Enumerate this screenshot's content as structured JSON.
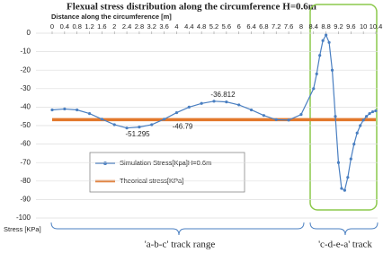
{
  "chart_data": {
    "type": "line",
    "title": "Flexual stress distribution along the circumference H=0.6m",
    "x_label": "Distance along the circumference [m]",
    "y_label": "Stress [KPa]",
    "xlim": [
      0,
      10.4
    ],
    "xticks": [
      0,
      0.4,
      0.8,
      1.2,
      1.6,
      2,
      2.4,
      2.8,
      3.2,
      3.6,
      4,
      4.4,
      4.8,
      5.2,
      5.6,
      6,
      6.4,
      6.8,
      7.2,
      7.6,
      8,
      8.4,
      8.8,
      9.2,
      9.6,
      10,
      10.4
    ],
    "ylim": [
      -100,
      0
    ],
    "yticks": [
      0,
      -10,
      -20,
      -30,
      -40,
      -50,
      -60,
      -70,
      -80,
      -90,
      -100
    ],
    "grid": true,
    "series": [
      {
        "name": "Simulation Stress[Kpa]H=0.6m",
        "color": "#4a7fc1",
        "x": [
          0,
          0.4,
          0.8,
          1.2,
          1.6,
          2,
          2.4,
          2.8,
          3.2,
          3.6,
          4,
          4.4,
          4.8,
          5.2,
          5.6,
          6,
          6.4,
          6.8,
          7.2,
          7.6,
          8,
          8.4,
          8.5,
          8.6,
          8.7,
          8.8,
          8.9,
          9,
          9.1,
          9.2,
          9.3,
          9.4,
          9.5,
          9.6,
          9.7,
          9.8,
          9.9,
          10,
          10.1,
          10.2,
          10.3,
          10.4
        ],
        "values": [
          -41.5,
          -41,
          -41.5,
          -43.5,
          -46.5,
          -49.5,
          -51.295,
          -50.8,
          -49.5,
          -46.5,
          -43,
          -40,
          -38,
          -36.812,
          -37.2,
          -38.8,
          -41.5,
          -44.5,
          -46.8,
          -47,
          -44,
          -30,
          -22,
          -12,
          -4,
          -1,
          -5,
          -20,
          -45,
          -70,
          -84,
          -85,
          -78,
          -68,
          -60,
          -54,
          -50,
          -47,
          -45,
          -43.5,
          -42.5,
          -42
        ]
      },
      {
        "name": "Theorical stress[KPa]",
        "color": "#e3782b",
        "x": [
          0,
          10.4
        ],
        "values": [
          -46.79,
          -46.79
        ]
      }
    ],
    "annotations": [
      "'a-b-c' track range",
      "'c-d-e-a' track"
    ]
  }
}
